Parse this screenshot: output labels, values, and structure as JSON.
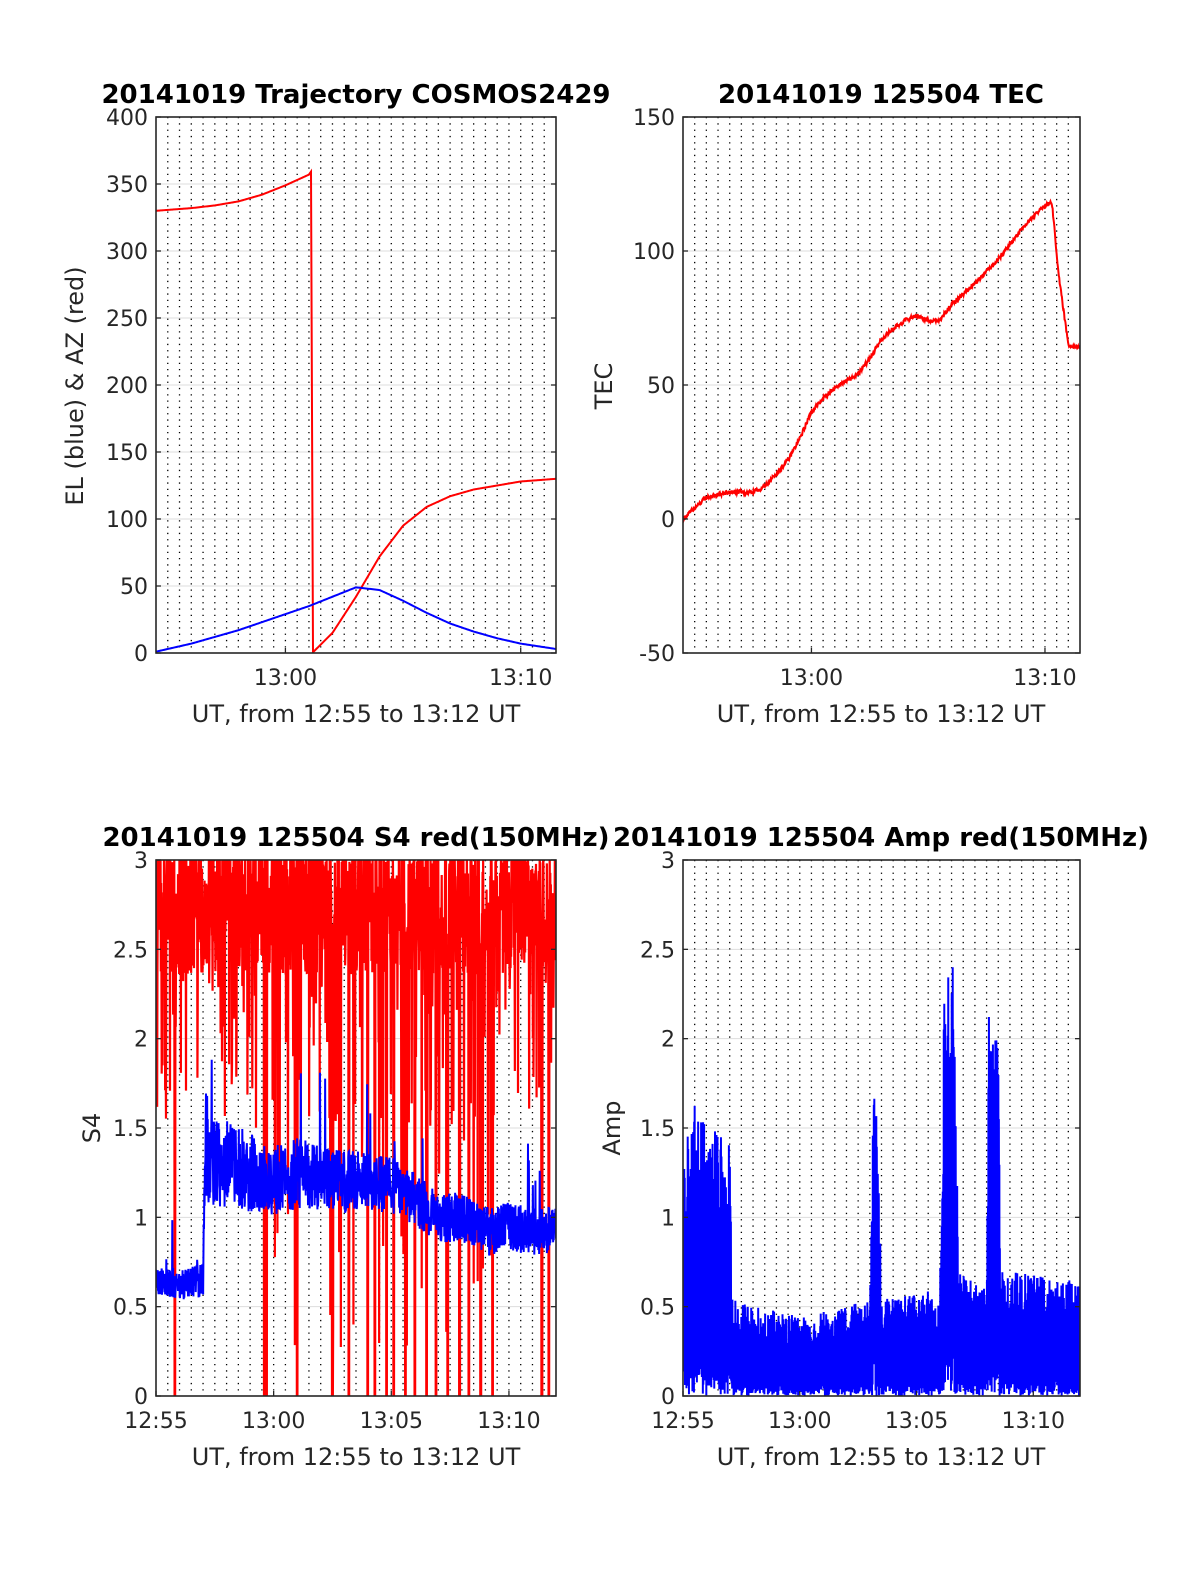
{
  "figure": {
    "panels": 4
  },
  "chart_data": [
    {
      "type": "line",
      "title": "20141019 Trajectory COSMOS2429",
      "xlabel": "UT, from 12:55 to 13:12 UT",
      "ylabel": "EL (blue) & AZ (red)",
      "xlim": [
        -0.5,
        16.5
      ],
      "ylim": [
        0,
        400
      ],
      "yticks": [
        0,
        50,
        100,
        150,
        200,
        250,
        300,
        350,
        400
      ],
      "xticks": [
        {
          "value": 5,
          "label": "13:00"
        },
        {
          "value": 15,
          "label": "13:10"
        }
      ],
      "grid": true,
      "series": [
        {
          "color": "#ff0000",
          "style": "line",
          "x": [
            -0.5,
            1,
            2,
            3,
            4,
            5,
            6,
            6.12,
            6.14,
            7,
            8,
            9,
            10,
            11,
            12,
            13,
            14,
            15,
            16.5
          ],
          "y": [
            330,
            332,
            334,
            337,
            342,
            349,
            357,
            360,
            0,
            15,
            42,
            72,
            95,
            109,
            117,
            122,
            125,
            128,
            130
          ]
        },
        {
          "color": "#0000ff",
          "style": "line",
          "x": [
            -0.5,
            1,
            2,
            3,
            4,
            5,
            6,
            7,
            8,
            9,
            10,
            11,
            12,
            13,
            14,
            15,
            16.5
          ],
          "y": [
            1,
            7,
            12,
            17,
            23,
            29,
            35,
            42,
            49,
            47,
            39,
            30,
            22,
            16,
            11,
            7,
            3
          ]
        }
      ]
    },
    {
      "type": "line",
      "title": "20141019 125504 TEC",
      "xlabel": "UT, from 12:55 to 13:12 UT",
      "ylabel": "TEC",
      "xlim": [
        -0.5,
        16.5
      ],
      "ylim": [
        -50,
        150
      ],
      "yticks": [
        -50,
        0,
        50,
        100,
        150
      ],
      "xticks": [
        {
          "value": 5,
          "label": "13:00"
        },
        {
          "value": 15,
          "label": "13:10"
        }
      ],
      "grid": true,
      "series": [
        {
          "color": "#ff0000",
          "style": "line",
          "noise": 0.8,
          "x": [
            -0.5,
            0.5,
            1.5,
            2.5,
            3,
            3.5,
            4,
            4.5,
            5,
            5.5,
            6,
            7,
            7.5,
            8,
            8.5,
            9,
            9.5,
            10,
            10.5,
            11,
            12,
            13,
            14,
            14.5,
            15,
            15.3,
            15.6,
            16,
            16.5
          ],
          "y": [
            0,
            8,
            10,
            10,
            12,
            17,
            22,
            30,
            40,
            45,
            49,
            54,
            60,
            67,
            71,
            74,
            76,
            74,
            74,
            80,
            88,
            97,
            108,
            113,
            117,
            118,
            90,
            65,
            64
          ]
        }
      ]
    },
    {
      "type": "line",
      "title": "20141019 125504 S4 red(150MHz)",
      "xlabel": "UT, from 12:55 to 13:12 UT",
      "ylabel": "S4",
      "xlim": [
        0,
        17
      ],
      "ylim": [
        0,
        3
      ],
      "yticks": [
        0,
        0.5,
        1,
        1.5,
        2,
        2.5,
        3
      ],
      "ytick_labels": [
        "0",
        "0.5",
        "1",
        "1.5",
        "2",
        "2.5",
        "3"
      ],
      "xticks": [
        {
          "value": 0,
          "label": "12:55"
        },
        {
          "value": 5,
          "label": "13:00"
        },
        {
          "value": 10,
          "label": "13:05"
        },
        {
          "value": 15,
          "label": "13:10"
        }
      ],
      "grid": true,
      "series": [
        {
          "color": "#ff0000",
          "style": "spiky-saturated",
          "base": 2.6,
          "spread": 0.4,
          "drops": [
            0.8,
            4.6,
            4.7,
            6.0,
            7.5,
            8.2,
            9.0,
            9.3,
            9.8,
            10.1,
            10.6,
            11.0,
            11.5,
            11.9,
            12.4,
            12.9,
            13.3,
            13.8,
            14.3,
            16.4,
            16.7
          ]
        },
        {
          "color": "#0000ff",
          "style": "noisy",
          "x": [
            0,
            1,
            2,
            2.1,
            3,
            4,
            5,
            6,
            7,
            8,
            9,
            10,
            11,
            12,
            13,
            14,
            15,
            16,
            17
          ],
          "y": [
            0.65,
            0.62,
            0.65,
            1.3,
            1.3,
            1.25,
            1.2,
            1.25,
            1.22,
            1.2,
            1.2,
            1.18,
            1.1,
            1.0,
            1.0,
            0.92,
            0.95,
            0.92,
            0.92
          ],
          "amp": [
            0.08,
            0.08,
            0.1,
            0.25,
            0.25,
            0.22,
            0.2,
            0.2,
            0.18,
            0.18,
            0.16,
            0.16,
            0.15,
            0.14,
            0.14,
            0.14,
            0.14,
            0.14,
            0.14
          ]
        }
      ]
    },
    {
      "type": "line",
      "title": "20141019 125504 Amp red(150MHz)",
      "xlabel": "UT, from 12:55 to 13:12 UT",
      "ylabel": "Amp",
      "xlim": [
        0,
        17
      ],
      "ylim": [
        0,
        3
      ],
      "yticks": [
        0,
        0.5,
        1,
        1.5,
        2,
        2.5,
        3
      ],
      "ytick_labels": [
        "0",
        "0.5",
        "1",
        "1.5",
        "2",
        "2.5",
        "3"
      ],
      "xticks": [
        {
          "value": 0,
          "label": "12:55"
        },
        {
          "value": 5,
          "label": "13:00"
        },
        {
          "value": 10,
          "label": "13:05"
        },
        {
          "value": 15,
          "label": "13:10"
        }
      ],
      "grid": true,
      "series": [
        {
          "color": "#0000ff",
          "style": "filled-noise",
          "x": [
            0,
            0.5,
            1,
            1.5,
            2,
            2.1,
            3,
            5,
            7,
            8,
            8.1,
            8.2,
            8.4,
            8.5,
            11,
            11.2,
            11.6,
            11.8,
            13,
            13.1,
            13.5,
            13.6,
            17
          ],
          "top": [
            1.3,
            1.7,
            1.5,
            1.5,
            1.45,
            0.55,
            0.5,
            0.45,
            0.5,
            0.55,
            1.3,
            2.0,
            1.2,
            0.55,
            0.6,
            2.4,
            2.4,
            0.7,
            0.6,
            2.45,
            2.45,
            0.7,
            0.65
          ]
        }
      ]
    }
  ]
}
